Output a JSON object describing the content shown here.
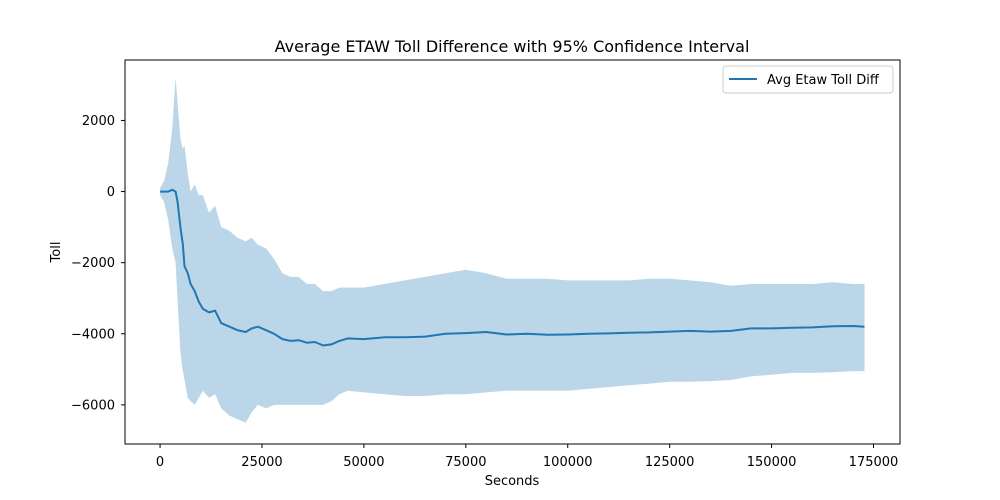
{
  "chart_data": {
    "type": "line",
    "title": "Average ETAW Toll Difference with 95% Confidence Interval",
    "xlabel": "Seconds",
    "ylabel": "Toll",
    "xlim": [
      -8600,
      181500
    ],
    "ylim": [
      -7100,
      3700
    ],
    "x_ticks": [
      0,
      25000,
      50000,
      75000,
      100000,
      125000,
      150000,
      175000
    ],
    "y_ticks": [
      2000,
      0,
      -2000,
      -4000,
      -6000
    ],
    "legend": {
      "position": "top-right",
      "entries": [
        "Avg Etaw Toll Diff"
      ]
    },
    "grid": false,
    "colors": {
      "line": "#1f77b4",
      "band": "#1f77b4"
    },
    "series": [
      {
        "name": "Avg Etaw Toll Diff",
        "points": [
          [
            0,
            0
          ],
          [
            2000,
            0
          ],
          [
            3000,
            50
          ],
          [
            3800,
            0
          ],
          [
            4300,
            -300
          ],
          [
            5000,
            -1000
          ],
          [
            5600,
            -1500
          ],
          [
            6000,
            -2100
          ],
          [
            6800,
            -2300
          ],
          [
            7500,
            -2600
          ],
          [
            8500,
            -2800
          ],
          [
            9500,
            -3100
          ],
          [
            10500,
            -3300
          ],
          [
            12000,
            -3400
          ],
          [
            13500,
            -3350
          ],
          [
            15000,
            -3700
          ],
          [
            17000,
            -3800
          ],
          [
            19000,
            -3900
          ],
          [
            21000,
            -3950
          ],
          [
            22500,
            -3850
          ],
          [
            24000,
            -3800
          ],
          [
            26000,
            -3900
          ],
          [
            28000,
            -4000
          ],
          [
            30000,
            -4150
          ],
          [
            32000,
            -4200
          ],
          [
            34000,
            -4180
          ],
          [
            36000,
            -4250
          ],
          [
            38000,
            -4230
          ],
          [
            40000,
            -4330
          ],
          [
            42000,
            -4300
          ],
          [
            44000,
            -4200
          ],
          [
            46000,
            -4130
          ],
          [
            50000,
            -4150
          ],
          [
            55000,
            -4100
          ],
          [
            60000,
            -4100
          ],
          [
            65000,
            -4080
          ],
          [
            70000,
            -4000
          ],
          [
            75000,
            -3980
          ],
          [
            80000,
            -3950
          ],
          [
            85000,
            -4020
          ],
          [
            90000,
            -4000
          ],
          [
            95000,
            -4030
          ],
          [
            100000,
            -4020
          ],
          [
            105000,
            -4000
          ],
          [
            110000,
            -3990
          ],
          [
            115000,
            -3970
          ],
          [
            120000,
            -3960
          ],
          [
            125000,
            -3940
          ],
          [
            130000,
            -3920
          ],
          [
            135000,
            -3940
          ],
          [
            140000,
            -3920
          ],
          [
            145000,
            -3850
          ],
          [
            150000,
            -3850
          ],
          [
            155000,
            -3830
          ],
          [
            160000,
            -3820
          ],
          [
            165000,
            -3790
          ],
          [
            170000,
            -3780
          ],
          [
            172800,
            -3800
          ]
        ]
      }
    ],
    "confidence_band": {
      "level": "95%",
      "points": [
        [
          0,
          -100,
          100
        ],
        [
          1000,
          -300,
          300
        ],
        [
          2000,
          -800,
          800
        ],
        [
          3000,
          -1600,
          1800
        ],
        [
          3800,
          -2000,
          3200
        ],
        [
          4500,
          -3500,
          2200
        ],
        [
          5000,
          -4500,
          1500
        ],
        [
          5500,
          -5000,
          1200
        ],
        [
          6000,
          -5300,
          1300
        ],
        [
          6800,
          -5800,
          500
        ],
        [
          7500,
          -5900,
          0
        ],
        [
          8500,
          -6000,
          200
        ],
        [
          9500,
          -5800,
          -100
        ],
        [
          10500,
          -5600,
          -100
        ],
        [
          12000,
          -5800,
          -600
        ],
        [
          13500,
          -5700,
          -400
        ],
        [
          15000,
          -6100,
          -1000
        ],
        [
          17000,
          -6300,
          -1100
        ],
        [
          19000,
          -6400,
          -1300
        ],
        [
          21000,
          -6500,
          -1400
        ],
        [
          22500,
          -6200,
          -1300
        ],
        [
          24000,
          -6000,
          -1500
        ],
        [
          26000,
          -6100,
          -1600
        ],
        [
          28000,
          -6000,
          -1900
        ],
        [
          30000,
          -6000,
          -2300
        ],
        [
          32000,
          -6000,
          -2400
        ],
        [
          34000,
          -6000,
          -2400
        ],
        [
          36000,
          -6000,
          -2600
        ],
        [
          38000,
          -6000,
          -2600
        ],
        [
          40000,
          -6000,
          -2800
        ],
        [
          42000,
          -5900,
          -2800
        ],
        [
          44000,
          -5700,
          -2700
        ],
        [
          46000,
          -5600,
          -2700
        ],
        [
          50000,
          -5650,
          -2700
        ],
        [
          55000,
          -5700,
          -2600
        ],
        [
          60000,
          -5750,
          -2500
        ],
        [
          65000,
          -5750,
          -2400
        ],
        [
          70000,
          -5700,
          -2300
        ],
        [
          75000,
          -5700,
          -2200
        ],
        [
          80000,
          -5650,
          -2300
        ],
        [
          85000,
          -5600,
          -2450
        ],
        [
          90000,
          -5600,
          -2450
        ],
        [
          95000,
          -5600,
          -2450
        ],
        [
          100000,
          -5600,
          -2500
        ],
        [
          105000,
          -5550,
          -2500
        ],
        [
          110000,
          -5500,
          -2500
        ],
        [
          115000,
          -5450,
          -2500
        ],
        [
          120000,
          -5400,
          -2450
        ],
        [
          125000,
          -5350,
          -2450
        ],
        [
          130000,
          -5350,
          -2500
        ],
        [
          135000,
          -5330,
          -2550
        ],
        [
          140000,
          -5300,
          -2650
        ],
        [
          145000,
          -5200,
          -2600
        ],
        [
          150000,
          -5150,
          -2600
        ],
        [
          155000,
          -5100,
          -2600
        ],
        [
          160000,
          -5100,
          -2600
        ],
        [
          165000,
          -5080,
          -2550
        ],
        [
          170000,
          -5050,
          -2600
        ],
        [
          172800,
          -5050,
          -2600
        ]
      ]
    }
  }
}
